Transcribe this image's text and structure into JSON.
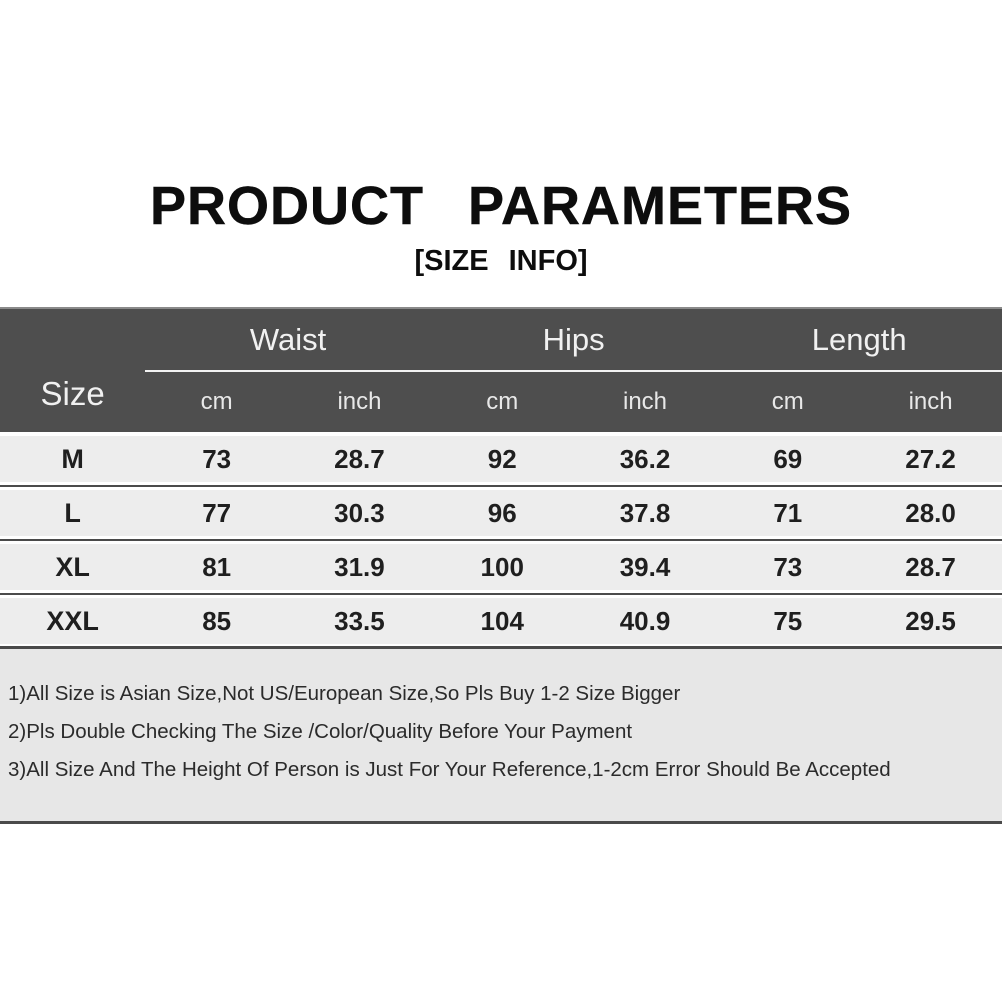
{
  "title": "PRODUCT PARAMETERS",
  "subtitle": "[SIZE INFO]",
  "table": {
    "size_header": "Size",
    "groups": [
      {
        "label": "Waist"
      },
      {
        "label": "Hips"
      },
      {
        "label": "Length"
      }
    ],
    "unit_cm": "cm",
    "unit_inch": "inch",
    "rows": [
      {
        "size": "M",
        "waist_cm": "73",
        "waist_inch": "28.7",
        "hips_cm": "92",
        "hips_inch": "36.2",
        "length_cm": "69",
        "length_inch": "27.2"
      },
      {
        "size": "L",
        "waist_cm": "77",
        "waist_inch": "30.3",
        "hips_cm": "96",
        "hips_inch": "37.8",
        "length_cm": "71",
        "length_inch": "28.0"
      },
      {
        "size": "XL",
        "waist_cm": "81",
        "waist_inch": "31.9",
        "hips_cm": "100",
        "hips_inch": "39.4",
        "length_cm": "73",
        "length_inch": "28.7"
      },
      {
        "size": "XXL",
        "waist_cm": "85",
        "waist_inch": "33.5",
        "hips_cm": "104",
        "hips_inch": "40.9",
        "length_cm": "75",
        "length_inch": "29.5"
      }
    ]
  },
  "notes": [
    "1)All Size is Asian Size,Not US/European Size,So Pls Buy 1-2 Size Bigger",
    "2)Pls Double Checking The Size /Color/Quality Before Your Payment",
    "3)All Size And The Height Of Person is Just For Your Reference,1-2cm Error Should Be Accepted"
  ],
  "colors": {
    "header_bg": "#4e4e4e",
    "header_text": "#f1f1f1",
    "row_bg": "#ededed",
    "notes_bg": "#e7e7e7",
    "divider": "#4a4a4a",
    "body_text": "#1f1f1f",
    "page_bg": "#ffffff"
  }
}
